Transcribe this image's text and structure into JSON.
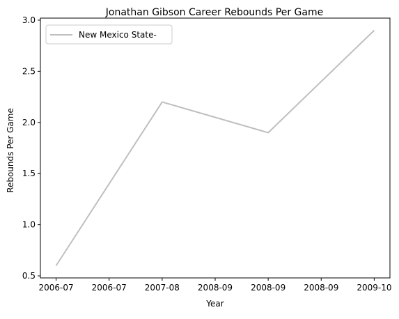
{
  "chart_data": {
    "type": "line",
    "title": "Jonathan Gibson  Career Rebounds Per Game",
    "xlabel": "Year",
    "ylabel": "Rebounds Per Game",
    "x": [
      "2006-07",
      "2007-08",
      "2008-09",
      "2009-10"
    ],
    "x_tick_labels": [
      "2006-07",
      "2006-07",
      "2007-08",
      "2008-09",
      "2008-09",
      "2008-09",
      "2009-10"
    ],
    "y_tick_labels": [
      "0.5",
      "1.0",
      "1.5",
      "2.0",
      "2.5",
      "3.0"
    ],
    "y_ticks": [
      0.5,
      1.0,
      1.5,
      2.0,
      2.5,
      3.0
    ],
    "ylim": [
      0.48,
      3.02
    ],
    "grid": false,
    "legend_position": "top-left",
    "series": [
      {
        "name": "New Mexico State-",
        "color": "#bfbfbf",
        "values": [
          0.6,
          2.2,
          1.9,
          2.9
        ]
      }
    ]
  }
}
